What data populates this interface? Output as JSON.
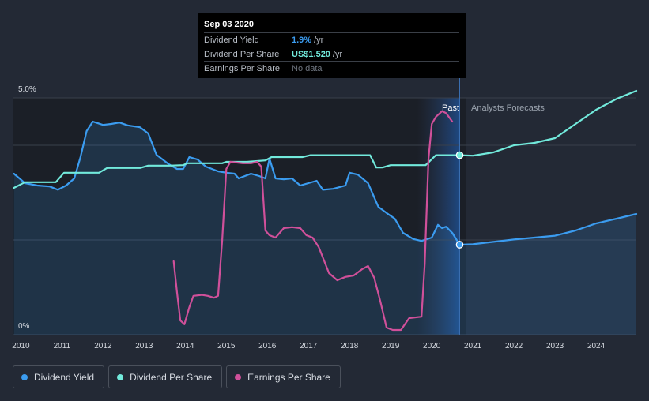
{
  "tooltip": {
    "date": "Sep 03 2020",
    "rows": [
      {
        "label": "Dividend Yield",
        "value": "1.9%",
        "unit": "/yr",
        "color": "#3b9cf0"
      },
      {
        "label": "Dividend Per Share",
        "value": "US$1.520",
        "unit": "/yr",
        "color": "#72eadc"
      },
      {
        "label": "Earnings Per Share",
        "value": "No data"
      }
    ]
  },
  "legend": [
    {
      "label": "Dividend Yield",
      "color": "#3b9cf0"
    },
    {
      "label": "Dividend Per Share",
      "color": "#72eadc"
    },
    {
      "label": "Earnings Per Share",
      "color": "#d0509a"
    }
  ],
  "chart_data": {
    "type": "line",
    "y_top_label": "5.0%",
    "y_bottom_label": "0%",
    "ylim": [
      0,
      5.0
    ],
    "xlim": [
      2009.8,
      2024.98
    ],
    "x_ticks": [
      "2010",
      "2011",
      "2012",
      "2013",
      "2014",
      "2015",
      "2016",
      "2017",
      "2018",
      "2019",
      "2020",
      "2021",
      "2022",
      "2023",
      "2024"
    ],
    "annotations": {
      "past": "Past",
      "forecast": "Analysts Forecasts"
    },
    "past_band": [
      2019.64,
      2020.68
    ],
    "divider_x": 2020.68,
    "series": [
      {
        "name": "Dividend Yield",
        "color": "#3b9cf0",
        "fill": true,
        "points": [
          [
            2009.83,
            3.4
          ],
          [
            2010.1,
            3.2
          ],
          [
            2010.4,
            3.15
          ],
          [
            2010.7,
            3.13
          ],
          [
            2010.9,
            3.06
          ],
          [
            2011.1,
            3.15
          ],
          [
            2011.3,
            3.3
          ],
          [
            2011.45,
            3.75
          ],
          [
            2011.6,
            4.3
          ],
          [
            2011.75,
            4.5
          ],
          [
            2012.0,
            4.43
          ],
          [
            2012.2,
            4.45
          ],
          [
            2012.4,
            4.48
          ],
          [
            2012.6,
            4.42
          ],
          [
            2012.9,
            4.38
          ],
          [
            2013.1,
            4.25
          ],
          [
            2013.3,
            3.8
          ],
          [
            2013.6,
            3.6
          ],
          [
            2013.8,
            3.5
          ],
          [
            2013.95,
            3.5
          ],
          [
            2014.1,
            3.75
          ],
          [
            2014.3,
            3.7
          ],
          [
            2014.5,
            3.55
          ],
          [
            2014.8,
            3.45
          ],
          [
            2015.0,
            3.42
          ],
          [
            2015.2,
            3.4
          ],
          [
            2015.3,
            3.3
          ],
          [
            2015.45,
            3.35
          ],
          [
            2015.6,
            3.4
          ],
          [
            2015.8,
            3.35
          ],
          [
            2015.95,
            3.3
          ],
          [
            2016.05,
            3.72
          ],
          [
            2016.2,
            3.3
          ],
          [
            2016.4,
            3.28
          ],
          [
            2016.6,
            3.3
          ],
          [
            2016.8,
            3.15
          ],
          [
            2017.0,
            3.2
          ],
          [
            2017.2,
            3.25
          ],
          [
            2017.35,
            3.06
          ],
          [
            2017.6,
            3.08
          ],
          [
            2017.9,
            3.15
          ],
          [
            2018.0,
            3.42
          ],
          [
            2018.2,
            3.38
          ],
          [
            2018.45,
            3.2
          ],
          [
            2018.7,
            2.7
          ],
          [
            2018.9,
            2.57
          ],
          [
            2019.1,
            2.45
          ],
          [
            2019.3,
            2.15
          ],
          [
            2019.55,
            2.02
          ],
          [
            2019.75,
            1.98
          ],
          [
            2020.0,
            2.05
          ],
          [
            2020.15,
            2.32
          ],
          [
            2020.25,
            2.25
          ],
          [
            2020.35,
            2.28
          ],
          [
            2020.5,
            2.15
          ],
          [
            2020.68,
            1.9
          ],
          [
            2021.0,
            1.91
          ],
          [
            2021.5,
            1.96
          ],
          [
            2022.0,
            2.01
          ],
          [
            2022.5,
            2.05
          ],
          [
            2023.0,
            2.09
          ],
          [
            2023.5,
            2.2
          ],
          [
            2024.0,
            2.35
          ],
          [
            2024.5,
            2.45
          ],
          [
            2024.98,
            2.55
          ]
        ]
      },
      {
        "name": "Dividend Per Share",
        "color": "#72eadc",
        "fill": false,
        "points": [
          [
            2009.83,
            3.1
          ],
          [
            2010.1,
            3.22
          ],
          [
            2010.4,
            3.22
          ],
          [
            2010.85,
            3.22
          ],
          [
            2011.05,
            3.42
          ],
          [
            2011.2,
            3.42
          ],
          [
            2011.9,
            3.42
          ],
          [
            2012.1,
            3.52
          ],
          [
            2012.9,
            3.52
          ],
          [
            2013.1,
            3.57
          ],
          [
            2013.6,
            3.57
          ],
          [
            2013.95,
            3.58
          ],
          [
            2014.05,
            3.62
          ],
          [
            2014.5,
            3.62
          ],
          [
            2014.9,
            3.62
          ],
          [
            2015.0,
            3.65
          ],
          [
            2015.5,
            3.65
          ],
          [
            2015.95,
            3.68
          ],
          [
            2016.1,
            3.75
          ],
          [
            2016.5,
            3.75
          ],
          [
            2016.85,
            3.75
          ],
          [
            2017.05,
            3.79
          ],
          [
            2017.5,
            3.79
          ],
          [
            2018.0,
            3.79
          ],
          [
            2018.5,
            3.79
          ],
          [
            2018.65,
            3.53
          ],
          [
            2018.8,
            3.53
          ],
          [
            2019.0,
            3.58
          ],
          [
            2019.5,
            3.58
          ],
          [
            2019.85,
            3.58
          ],
          [
            2020.1,
            3.79
          ],
          [
            2020.4,
            3.79
          ],
          [
            2020.68,
            3.79
          ],
          [
            2021.0,
            3.78
          ],
          [
            2021.5,
            3.85
          ],
          [
            2022.0,
            4.0
          ],
          [
            2022.5,
            4.05
          ],
          [
            2023.0,
            4.15
          ],
          [
            2023.5,
            4.45
          ],
          [
            2024.0,
            4.75
          ],
          [
            2024.5,
            4.98
          ],
          [
            2024.98,
            5.15
          ]
        ]
      },
      {
        "name": "Earnings Per Share",
        "color": "#d0509a",
        "fill": false,
        "points": [
          [
            2013.72,
            1.55
          ],
          [
            2013.8,
            0.9
          ],
          [
            2013.88,
            0.3
          ],
          [
            2013.98,
            0.22
          ],
          [
            2014.1,
            0.58
          ],
          [
            2014.2,
            0.82
          ],
          [
            2014.4,
            0.84
          ],
          [
            2014.55,
            0.82
          ],
          [
            2014.7,
            0.78
          ],
          [
            2014.8,
            0.82
          ],
          [
            2014.9,
            2.0
          ],
          [
            2015.0,
            3.5
          ],
          [
            2015.1,
            3.65
          ],
          [
            2015.4,
            3.62
          ],
          [
            2015.6,
            3.62
          ],
          [
            2015.75,
            3.65
          ],
          [
            2015.85,
            3.55
          ],
          [
            2015.95,
            2.2
          ],
          [
            2016.05,
            2.1
          ],
          [
            2016.2,
            2.05
          ],
          [
            2016.4,
            2.25
          ],
          [
            2016.6,
            2.27
          ],
          [
            2016.8,
            2.25
          ],
          [
            2016.95,
            2.1
          ],
          [
            2017.1,
            2.05
          ],
          [
            2017.25,
            1.85
          ],
          [
            2017.5,
            1.3
          ],
          [
            2017.7,
            1.15
          ],
          [
            2017.9,
            1.22
          ],
          [
            2018.1,
            1.25
          ],
          [
            2018.3,
            1.38
          ],
          [
            2018.45,
            1.45
          ],
          [
            2018.6,
            1.2
          ],
          [
            2018.75,
            0.7
          ],
          [
            2018.9,
            0.15
          ],
          [
            2019.05,
            0.1
          ],
          [
            2019.25,
            0.1
          ],
          [
            2019.45,
            0.35
          ],
          [
            2019.75,
            0.38
          ],
          [
            2019.83,
            1.5
          ],
          [
            2019.92,
            3.7
          ],
          [
            2020.0,
            4.45
          ],
          [
            2020.1,
            4.6
          ],
          [
            2020.25,
            4.72
          ],
          [
            2020.35,
            4.68
          ],
          [
            2020.5,
            4.5
          ]
        ]
      }
    ],
    "markers": [
      {
        "series": "Dividend Yield",
        "x": 2020.68,
        "y": 1.9
      },
      {
        "series": "Dividend Per Share",
        "x": 2020.68,
        "y": 3.79
      }
    ]
  }
}
